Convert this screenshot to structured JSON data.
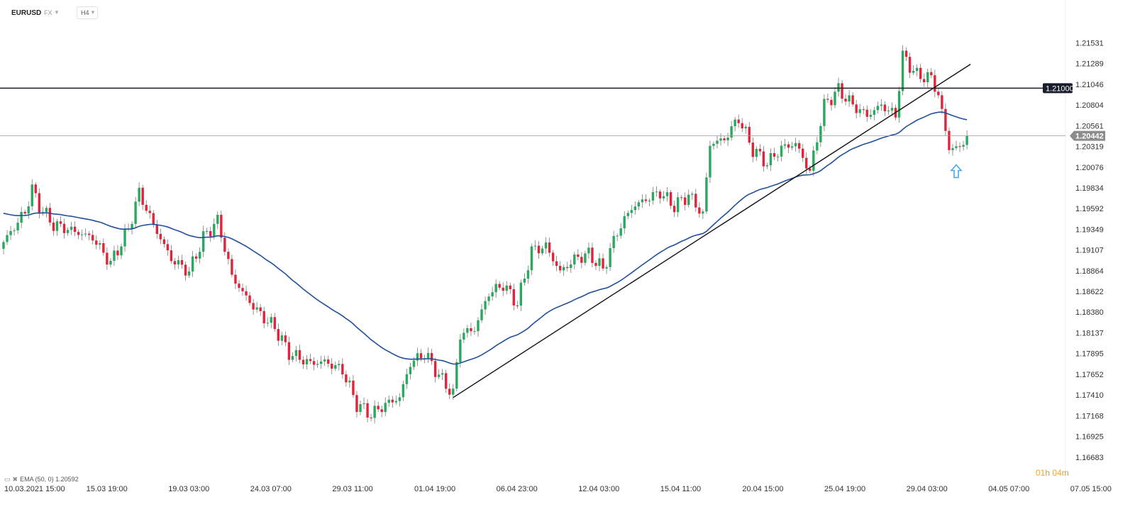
{
  "header": {
    "symbol": "EURUSD",
    "market": "FX",
    "timeframe": "H4"
  },
  "legend": {
    "indicator": "EMA (50, 0) 1.20592"
  },
  "countdown": {
    "hours": "01",
    "h_unit": "h",
    "minutes": "04",
    "m_unit": "m"
  },
  "colors": {
    "bull": "#27a95e",
    "bear": "#e0243a",
    "ema": "#1f4f9c",
    "trendline": "#111111",
    "level_label_bg": "#1a1e2b",
    "price_label_bg": "#8c8c8c",
    "arrow": "#4aa8e8"
  },
  "chart_data": {
    "type": "candlestick",
    "symbol": "EURUSD",
    "interval": "H4",
    "ylim": [
      1.1664,
      1.2165
    ],
    "y_ticks": [
      "1.21531",
      "1.21289",
      "1.21046",
      "1.20804",
      "1.20561",
      "1.20319",
      "1.20076",
      "1.19834",
      "1.19592",
      "1.19349",
      "1.19107",
      "1.18864",
      "1.18622",
      "1.18380",
      "1.18137",
      "1.17895",
      "1.17652",
      "1.17410",
      "1.17168",
      "1.16925",
      "1.16683"
    ],
    "x_ticks": [
      "10.03.2021  15:00",
      "15.03  19:00",
      "19.03  03:00",
      "24.03  07:00",
      "29.03  11:00",
      "01.04  19:00",
      "06.04  23:00",
      "12.04  03:00",
      "15.04  11:00",
      "20.04  15:00",
      "25.04  19:00",
      "29.04  03:00",
      "04.05  07:00",
      "07.05  15:00"
    ],
    "horizontal_level": {
      "value": 1.21,
      "label": "1.21000"
    },
    "current_price": {
      "value": 1.20442,
      "label": "1.20442"
    },
    "trendline": {
      "from_index": 126,
      "from_price": 1.1738,
      "to_index": 271,
      "to_price": 1.2128
    },
    "ema_period": 50,
    "ema_last": 1.20592,
    "arrow_signal": {
      "index": 267,
      "price": 1.2002,
      "direction": "up"
    },
    "waypoints": [
      [
        0,
        1.192
      ],
      [
        6,
        1.1955
      ],
      [
        8,
        1.1982
      ],
      [
        10,
        1.1962
      ],
      [
        14,
        1.194
      ],
      [
        18,
        1.1935
      ],
      [
        25,
        1.1925
      ],
      [
        30,
        1.1895
      ],
      [
        35,
        1.1935
      ],
      [
        38,
        1.1978
      ],
      [
        42,
        1.194
      ],
      [
        47,
        1.19
      ],
      [
        52,
        1.1885
      ],
      [
        56,
        1.1925
      ],
      [
        60,
        1.1945
      ],
      [
        64,
        1.188
      ],
      [
        68,
        1.1855
      ],
      [
        72,
        1.1835
      ],
      [
        76,
        1.182
      ],
      [
        80,
        1.179
      ],
      [
        86,
        1.1778
      ],
      [
        90,
        1.178
      ],
      [
        95,
        1.177
      ],
      [
        99,
        1.173
      ],
      [
        103,
        1.1718
      ],
      [
        107,
        1.173
      ],
      [
        111,
        1.1738
      ],
      [
        114,
        1.1778
      ],
      [
        118,
        1.179
      ],
      [
        123,
        1.1758
      ],
      [
        126,
        1.1742
      ],
      [
        128,
        1.1812
      ],
      [
        132,
        1.1818
      ],
      [
        136,
        1.186
      ],
      [
        140,
        1.187
      ],
      [
        144,
        1.1848
      ],
      [
        148,
        1.191
      ],
      [
        152,
        1.1915
      ],
      [
        156,
        1.1885
      ],
      [
        160,
        1.19
      ],
      [
        164,
        1.1906
      ],
      [
        168,
        1.1888
      ],
      [
        172,
        1.1932
      ],
      [
        176,
        1.196
      ],
      [
        180,
        1.197
      ],
      [
        184,
        1.1978
      ],
      [
        188,
        1.1962
      ],
      [
        192,
        1.1975
      ],
      [
        196,
        1.1952
      ],
      [
        198,
        1.2035
      ],
      [
        202,
        1.204
      ],
      [
        206,
        1.2065
      ],
      [
        210,
        1.2028
      ],
      [
        214,
        1.2012
      ],
      [
        218,
        1.203
      ],
      [
        222,
        1.2035
      ],
      [
        226,
        1.2002
      ],
      [
        230,
        1.208
      ],
      [
        234,
        1.2098
      ],
      [
        238,
        1.208
      ],
      [
        242,
        1.2068
      ],
      [
        246,
        1.208
      ],
      [
        250,
        1.2068
      ],
      [
        252,
        1.2138
      ],
      [
        256,
        1.2115
      ],
      [
        260,
        1.2112
      ],
      [
        262,
        1.2092
      ],
      [
        265,
        1.203
      ],
      [
        268,
        1.203
      ],
      [
        270,
        1.2044
      ]
    ]
  }
}
